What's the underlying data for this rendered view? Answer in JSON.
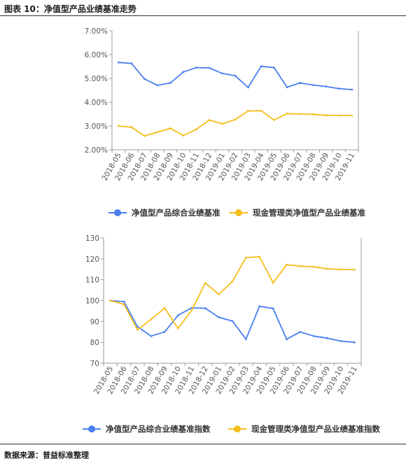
{
  "figure": {
    "title": "图表 10：净值型产品业绩基准走势",
    "source": "数据来源：普益标准整理"
  },
  "colors": {
    "blue": "#4a7ff0",
    "yellow": "#f5be1d",
    "axis": "#999999"
  },
  "chart_data": [
    {
      "type": "line",
      "x": [
        "2018-05",
        "2018-06",
        "2018-07",
        "2018-08",
        "2018-09",
        "2018-10",
        "2018-11",
        "2018-12",
        "2019-01",
        "2019-02",
        "2019-03",
        "2019-04",
        "2019-05",
        "2019-06",
        "2019-07",
        "2019-08",
        "2019-09",
        "2019-10",
        "2019-11"
      ],
      "ylim": [
        2.0,
        7.0
      ],
      "yticks": [
        "2.00%",
        "3.00%",
        "4.00%",
        "5.00%",
        "6.00%",
        "7.00%"
      ],
      "yunit": "%",
      "grid": false,
      "legend": "bottom",
      "series": [
        {
          "name": "净值型产品综合业绩基准",
          "color": "#4a7ff0",
          "values": [
            5.67,
            5.63,
            4.98,
            4.71,
            4.81,
            5.27,
            5.45,
            5.44,
            5.21,
            5.11,
            4.62,
            5.51,
            5.45,
            4.63,
            4.81,
            4.72,
            4.66,
            4.57,
            4.53
          ]
        },
        {
          "name": "现金管理类净值型产品业绩基准",
          "color": "#f5be1d",
          "values": [
            3.0,
            2.95,
            2.58,
            2.74,
            2.9,
            2.6,
            2.86,
            3.25,
            3.09,
            3.27,
            3.63,
            3.64,
            3.25,
            3.52,
            3.5,
            3.49,
            3.45,
            3.44,
            3.44
          ]
        }
      ]
    },
    {
      "type": "line",
      "x": [
        "2018-05",
        "2018-06",
        "2018-07",
        "2018-08",
        "2018-09",
        "2018-10",
        "2018-11",
        "2018-12",
        "2019-01",
        "2019-02",
        "2019-03",
        "2019-04",
        "2019-05",
        "2019-06",
        "2019-07",
        "2019-08",
        "2019-09",
        "2019-10",
        "2019-11"
      ],
      "ylim": [
        70,
        130
      ],
      "yticks": [
        "70",
        "80",
        "90",
        "100",
        "110",
        "120",
        "130"
      ],
      "grid": false,
      "legend": "bottom",
      "series": [
        {
          "name": "净值型产品综合业绩基准指数",
          "color": "#4a7ff0",
          "values": [
            100,
            99.5,
            87.5,
            83,
            85,
            93,
            96.5,
            96.3,
            92,
            90.2,
            81.5,
            97.3,
            96.2,
            81.5,
            85,
            83,
            82,
            80.6,
            80
          ]
        },
        {
          "name": "现金管理类净值型产品业绩基准指数",
          "color": "#f5be1d",
          "values": [
            100,
            98.2,
            86,
            91,
            96.4,
            86.7,
            95.4,
            108.4,
            103,
            109.2,
            120.6,
            121,
            108.5,
            117.2,
            116.5,
            116.2,
            115.2,
            114.9,
            114.8
          ]
        }
      ]
    }
  ]
}
